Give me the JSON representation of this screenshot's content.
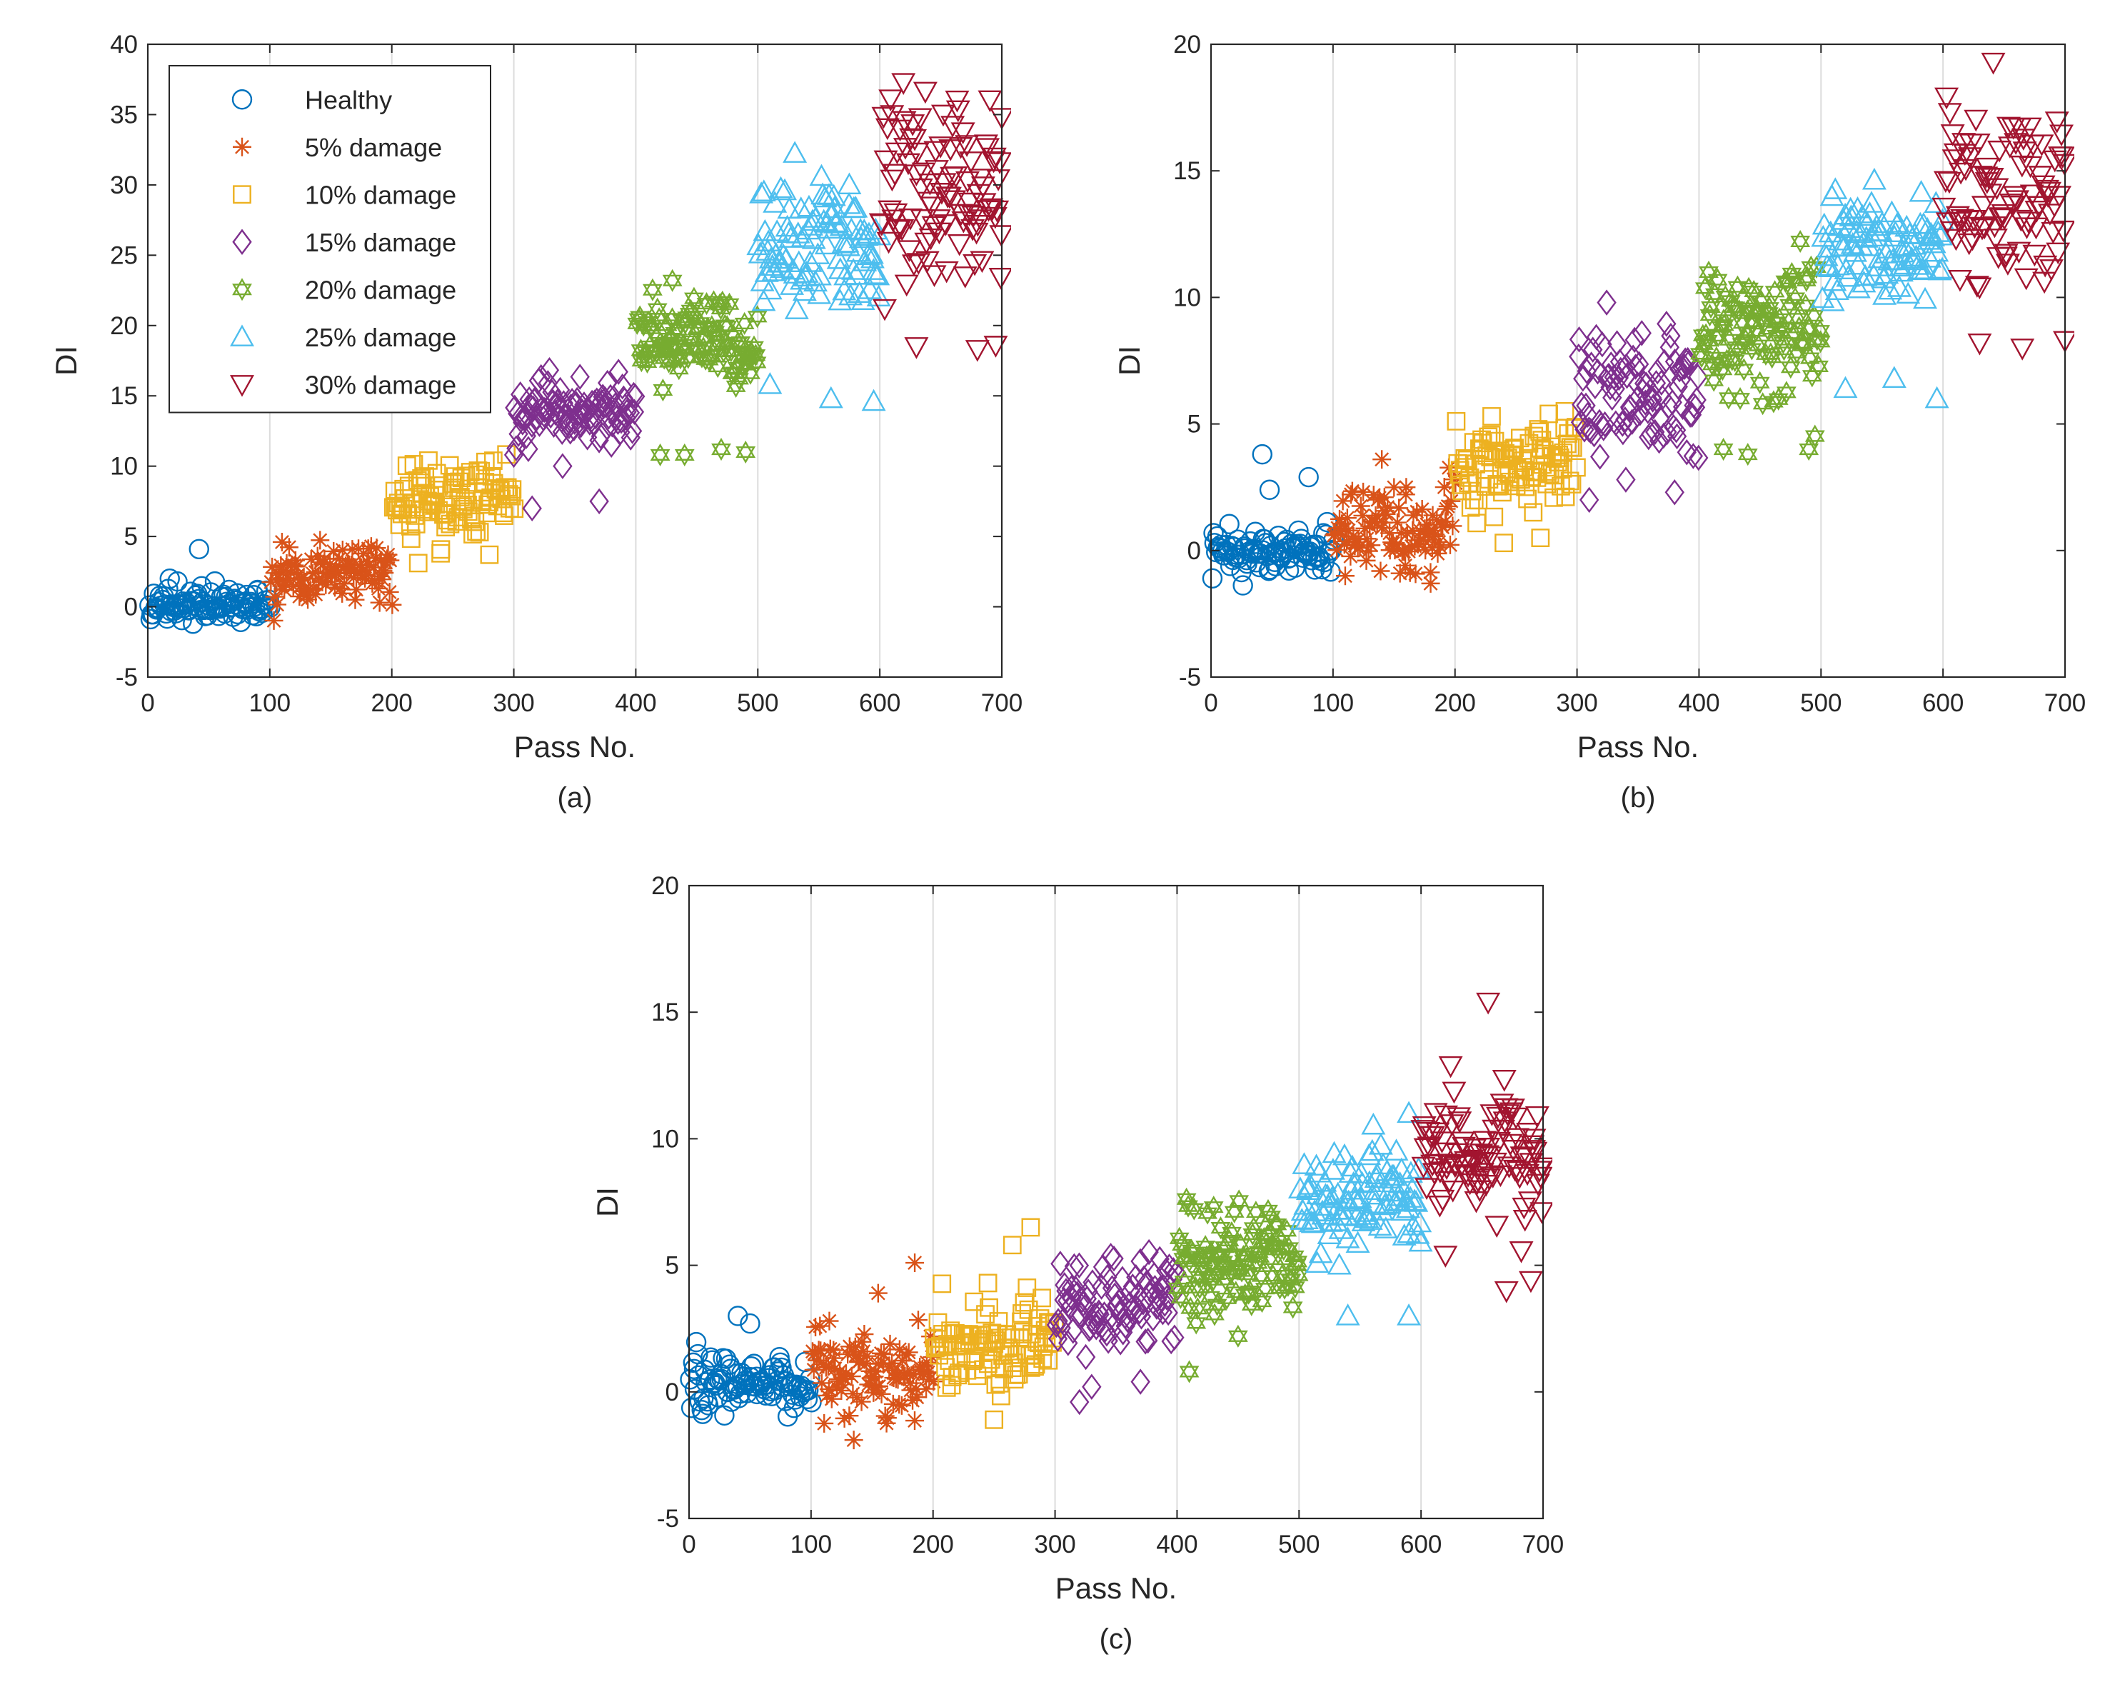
{
  "figure": {
    "series_colors": {
      "Healthy": "#0072BD",
      "5% damage": "#D95319",
      "10% damage": "#EDB120",
      "15% damage": "#7E2F8E",
      "20% damage": "#77AC30",
      "25% damage": "#4DBEEE",
      "30% damage": "#A2142F"
    },
    "series_markers": {
      "Healthy": "circle",
      "5% damage": "asterisk",
      "10% damage": "square",
      "15% damage": "diamond",
      "20% damage": "hexagram",
      "25% damage": "triangle-up",
      "30% damage": "triangle-down"
    }
  },
  "chart_data": [
    {
      "type": "scatter",
      "panel_label": "(a)",
      "xlabel": "Pass No.",
      "ylabel": "DI",
      "xlim": [
        0,
        700
      ],
      "ylim": [
        -5,
        40
      ],
      "xticks": [
        0,
        100,
        200,
        300,
        400,
        500,
        600,
        700
      ],
      "yticks": [
        -5,
        0,
        5,
        10,
        15,
        20,
        25,
        30,
        35,
        40
      ],
      "grid": "vertical",
      "legend": {
        "placement": "top-left",
        "entries": [
          "Healthy",
          "5% damage",
          "10% damage",
          "15% damage",
          "20% damage",
          "25% damage",
          "30% damage"
        ]
      },
      "series": [
        {
          "name": "Healthy",
          "x_range": [
            1,
            100
          ],
          "center": 0.0,
          "spread": 0.55,
          "outliers": [
            [
              42,
              4.1
            ],
            [
              18,
              2.0
            ],
            [
              55,
              1.8
            ],
            [
              90,
              1.2
            ]
          ]
        },
        {
          "name": "5% damage",
          "x_range": [
            101,
            200
          ],
          "center": 2.5,
          "spread": 1.0,
          "outliers": [
            [
              110,
              4.6
            ],
            [
              170,
              0.5
            ],
            [
              190,
              0.3
            ]
          ]
        },
        {
          "name": "10% damage",
          "x_range": [
            201,
            300
          ],
          "center": 7.8,
          "spread": 1.3,
          "outliers": [
            [
              240,
              3.8
            ],
            [
              280,
              3.7
            ],
            [
              230,
              10.4
            ]
          ]
        },
        {
          "name": "15% damage",
          "x_range": [
            301,
            400
          ],
          "center": 13.8,
          "spread": 1.1,
          "outliers": [
            [
              315,
              7.0
            ],
            [
              370,
              7.5
            ],
            [
              340,
              10.0
            ],
            [
              300,
              10.8
            ]
          ]
        },
        {
          "name": "20% damage",
          "x_range": [
            401,
            500
          ],
          "center": 19.0,
          "spread": 1.8,
          "outliers": [
            [
              420,
              10.8
            ],
            [
              440,
              10.8
            ],
            [
              490,
              11.0
            ],
            [
              470,
              11.2
            ],
            [
              430,
              23.2
            ]
          ]
        },
        {
          "name": "25% damage",
          "x_range": [
            501,
            600
          ],
          "center": 25.5,
          "spread": 2.3,
          "outliers": [
            [
              510,
              15.8
            ],
            [
              560,
              14.8
            ],
            [
              595,
              14.6
            ],
            [
              575,
              30.0
            ],
            [
              505,
              29.5
            ]
          ]
        },
        {
          "name": "30% damage",
          "x_range": [
            601,
            700
          ],
          "center": 29.0,
          "spread": 3.8,
          "outliers": [
            [
              630,
              18.5
            ],
            [
              680,
              18.3
            ],
            [
              695,
              18.6
            ],
            [
              610,
              35.0
            ],
            [
              700,
              34.8
            ]
          ]
        }
      ]
    },
    {
      "type": "scatter",
      "panel_label": "(b)",
      "xlabel": "Pass No.",
      "ylabel": "DI",
      "xlim": [
        0,
        700
      ],
      "ylim": [
        -5,
        20
      ],
      "xticks": [
        0,
        100,
        200,
        300,
        400,
        500,
        600,
        700
      ],
      "yticks": [
        -5,
        0,
        5,
        10,
        15,
        20
      ],
      "grid": "vertical",
      "series": [
        {
          "name": "Healthy",
          "x_range": [
            1,
            100
          ],
          "center": 0.0,
          "spread": 0.45,
          "outliers": [
            [
              42,
              3.8
            ],
            [
              80,
              2.9
            ],
            [
              48,
              2.4
            ]
          ]
        },
        {
          "name": "5% damage",
          "x_range": [
            101,
            200
          ],
          "center": 1.0,
          "spread": 0.9,
          "outliers": [
            [
              140,
              3.6
            ],
            [
              160,
              2.5
            ],
            [
              110,
              -1.0
            ],
            [
              180,
              -1.3
            ]
          ]
        },
        {
          "name": "10% damage",
          "x_range": [
            201,
            300
          ],
          "center": 3.5,
          "spread": 0.9,
          "outliers": [
            [
              240,
              0.3
            ],
            [
              270,
              0.5
            ],
            [
              230,
              5.3
            ],
            [
              290,
              5.5
            ]
          ]
        },
        {
          "name": "15% damage",
          "x_range": [
            301,
            400
          ],
          "center": 6.0,
          "spread": 1.2,
          "outliers": [
            [
              310,
              2.0
            ],
            [
              340,
              2.8
            ],
            [
              380,
              2.3
            ]
          ]
        },
        {
          "name": "20% damage",
          "x_range": [
            401,
            500
          ],
          "center": 8.8,
          "spread": 1.3,
          "outliers": [
            [
              420,
              4.0
            ],
            [
              440,
              3.8
            ],
            [
              490,
              4.0
            ]
          ]
        },
        {
          "name": "25% damage",
          "x_range": [
            501,
            600
          ],
          "center": 11.8,
          "spread": 1.1,
          "outliers": [
            [
              520,
              6.4
            ],
            [
              560,
              6.8
            ],
            [
              595,
              6.0
            ],
            [
              530,
              13.5
            ]
          ]
        },
        {
          "name": "30% damage",
          "x_range": [
            601,
            700
          ],
          "center": 14.0,
          "spread": 1.8,
          "outliers": [
            [
              630,
              8.2
            ],
            [
              665,
              8.0
            ],
            [
              700,
              8.3
            ]
          ]
        }
      ]
    },
    {
      "type": "scatter",
      "panel_label": "(c)",
      "xlabel": "Pass No.",
      "ylabel": "DI",
      "xlim": [
        0,
        700
      ],
      "ylim": [
        -5,
        20
      ],
      "xticks": [
        0,
        100,
        200,
        300,
        400,
        500,
        600,
        700
      ],
      "yticks": [
        -5,
        0,
        5,
        10,
        15,
        20
      ],
      "grid": "vertical",
      "series": [
        {
          "name": "Healthy",
          "x_range": [
            1,
            100
          ],
          "center": 0.2,
          "spread": 0.6,
          "outliers": [
            [
              40,
              3.0
            ],
            [
              50,
              2.7
            ]
          ]
        },
        {
          "name": "5% damage",
          "x_range": [
            101,
            200
          ],
          "center": 0.5,
          "spread": 0.9,
          "outliers": [
            [
              185,
              5.1
            ],
            [
              155,
              3.9
            ],
            [
              135,
              -1.9
            ],
            [
              115,
              2.8
            ]
          ]
        },
        {
          "name": "10% damage",
          "x_range": [
            201,
            300
          ],
          "center": 1.9,
          "spread": 0.9,
          "outliers": [
            [
              280,
              6.5
            ],
            [
              265,
              5.8
            ],
            [
              250,
              -1.1
            ],
            [
              245,
              4.3
            ]
          ]
        },
        {
          "name": "15% damage",
          "x_range": [
            301,
            400
          ],
          "center": 3.5,
          "spread": 0.9,
          "outliers": [
            [
              320,
              -0.4
            ],
            [
              330,
              0.2
            ],
            [
              370,
              0.4
            ]
          ]
        },
        {
          "name": "20% damage",
          "x_range": [
            401,
            500
          ],
          "center": 5.0,
          "spread": 1.2,
          "outliers": [
            [
              410,
              0.8
            ],
            [
              450,
              2.2
            ],
            [
              430,
              7.3
            ]
          ]
        },
        {
          "name": "25% damage",
          "x_range": [
            501,
            600
          ],
          "center": 7.6,
          "spread": 1.0,
          "outliers": [
            [
              540,
              3.0
            ],
            [
              590,
              3.0
            ],
            [
              590,
              11.0
            ],
            [
              560,
              9.5
            ]
          ]
        },
        {
          "name": "30% damage",
          "x_range": [
            601,
            700
          ],
          "center": 9.2,
          "spread": 1.3,
          "outliers": [
            [
              655,
              15.4
            ],
            [
              670,
              4.0
            ],
            [
              690,
              4.4
            ],
            [
              620,
              5.4
            ]
          ]
        }
      ]
    }
  ]
}
